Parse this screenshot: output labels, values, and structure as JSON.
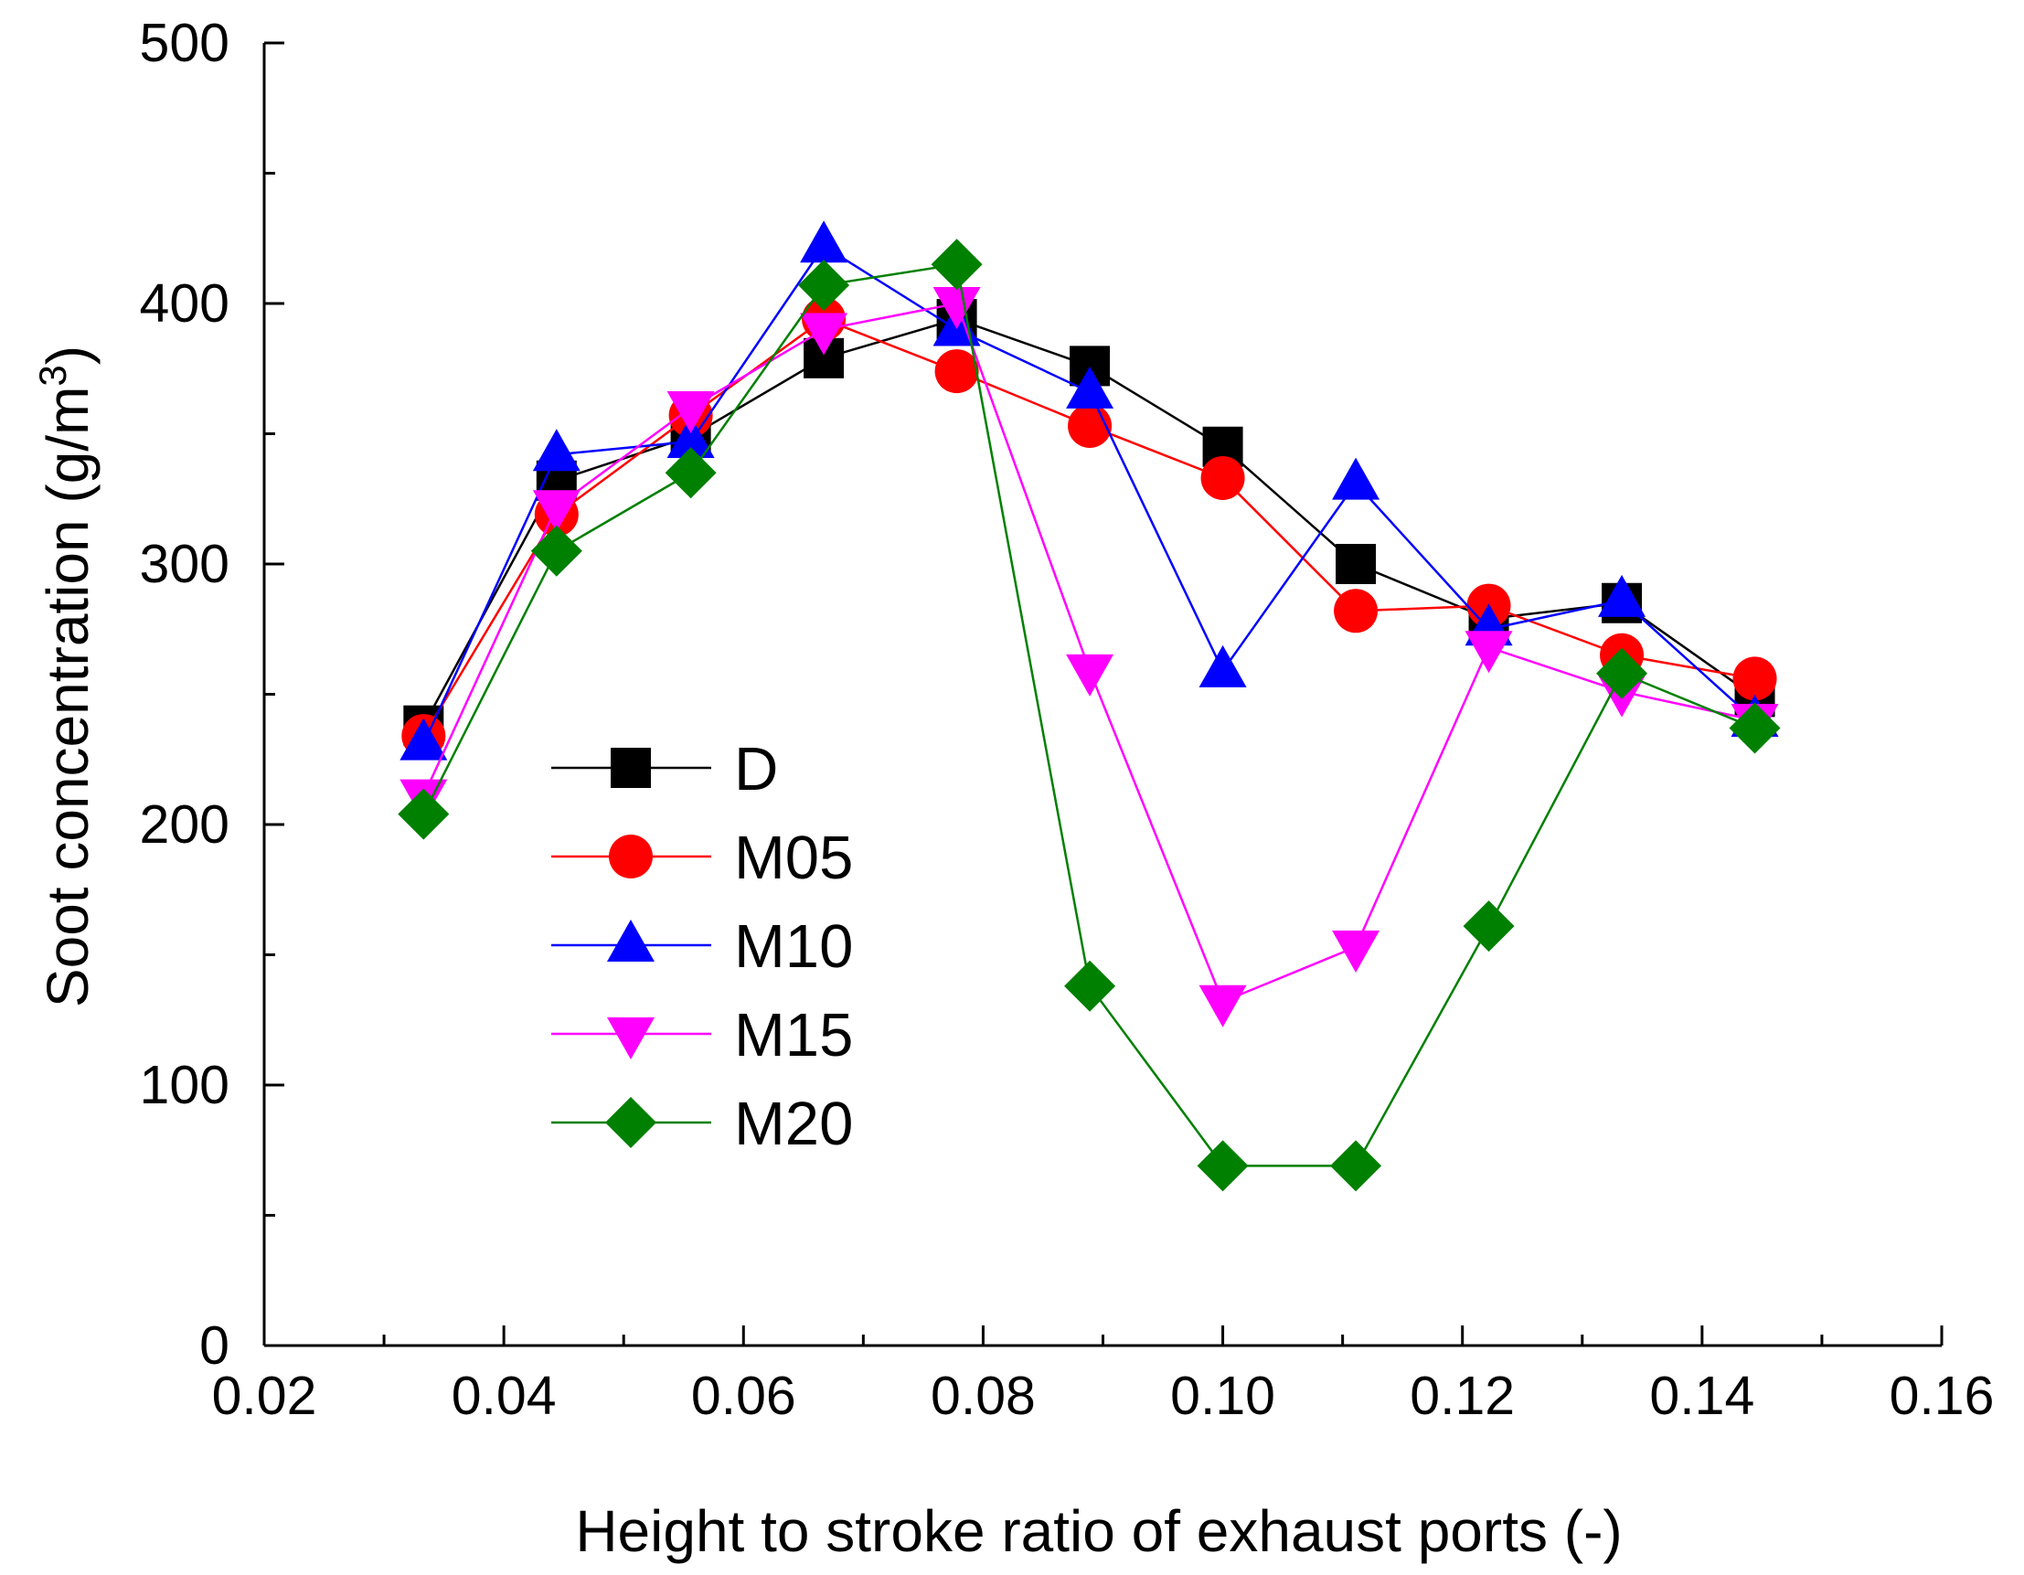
{
  "chart_data": {
    "type": "line",
    "xlabel": "Height to stroke ratio of exhaust ports (-)",
    "ylabel_prefix": "Soot concentration (g/m",
    "ylabel_sup": "3",
    "ylabel_suffix": ")",
    "xlim": [
      0.02,
      0.16
    ],
    "ylim": [
      0,
      500
    ],
    "x_ticks": [
      0.02,
      0.04,
      0.06,
      0.08,
      0.1,
      0.12,
      0.14,
      0.16
    ],
    "x_tick_labels": [
      "0.02",
      "0.04",
      "0.06",
      "0.08",
      "0.10",
      "0.12",
      "0.14",
      "0.16"
    ],
    "x_minor_ticks": [
      0.03,
      0.05,
      0.07,
      0.09,
      0.11,
      0.13,
      0.15
    ],
    "y_ticks": [
      0,
      100,
      200,
      300,
      400,
      500
    ],
    "y_tick_labels": [
      "0",
      "100",
      "200",
      "300",
      "400",
      "500"
    ],
    "y_minor_ticks": [
      50,
      150,
      250,
      350,
      450
    ],
    "grid": false,
    "legend_position": "lower-left-center",
    "x": [
      0.0333,
      0.0444,
      0.0556,
      0.0667,
      0.0778,
      0.0889,
      0.1,
      0.1111,
      0.1222,
      0.1333,
      0.1444
    ],
    "series": [
      {
        "name": "D",
        "color": "#000000",
        "marker": "square",
        "values": [
          238,
          332,
          349,
          379,
          394,
          376,
          345,
          300,
          279,
          285,
          249
        ]
      },
      {
        "name": "M05",
        "color": "#ff0000",
        "marker": "circle",
        "values": [
          234,
          319,
          357,
          394,
          374,
          353,
          333,
          282,
          284,
          265,
          256
        ]
      },
      {
        "name": "M10",
        "color": "#0000ff",
        "marker": "triangle-up",
        "values": [
          231,
          342,
          347,
          422,
          390,
          366,
          259,
          331,
          275,
          286,
          240
        ]
      },
      {
        "name": "M15",
        "color": "#ff00ff",
        "marker": "triangle-down",
        "values": [
          211,
          322,
          360,
          390,
          400,
          259,
          132,
          153,
          268,
          251,
          240
        ]
      },
      {
        "name": "M20",
        "color": "#008000",
        "marker": "diamond",
        "values": [
          204,
          305,
          335,
          407,
          415,
          138,
          69,
          69,
          161,
          258,
          237
        ]
      }
    ]
  }
}
